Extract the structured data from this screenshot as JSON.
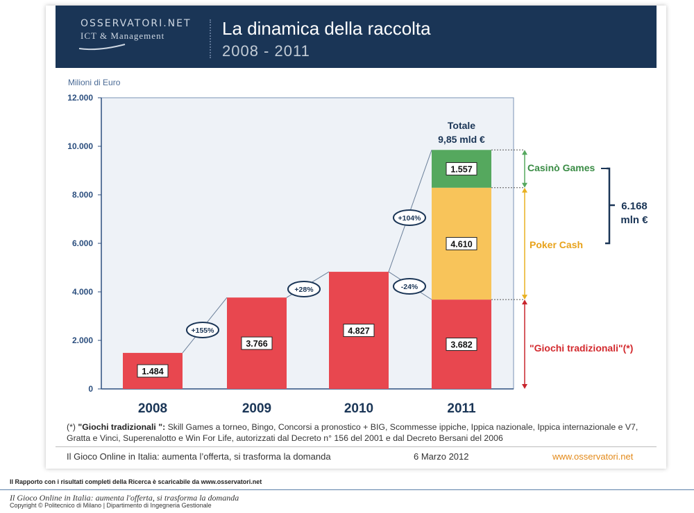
{
  "header": {
    "logo_name": "OSSERVATORI.NET",
    "logo_sub": "ICT & Management",
    "title": "La dinamica della raccolta",
    "subtitle": "2008 - 2011"
  },
  "chart_data": {
    "type": "bar",
    "ylabel": "Milioni di Euro",
    "ylim": [
      0,
      12000
    ],
    "yticks": [
      "0",
      "2.000",
      "4.000",
      "6.000",
      "8.000",
      "10.000",
      "12.000"
    ],
    "categories": [
      "2008",
      "2009",
      "2010",
      "2011"
    ],
    "series": [
      {
        "name": "\"Giochi tradizionali\"(*)",
        "color": "#e8474f",
        "values": [
          1484,
          3766,
          4827,
          3682
        ],
        "labels": [
          "1.484",
          "3.766",
          "4.827",
          "3.682"
        ]
      },
      {
        "name": "Poker Cash",
        "color": "#f8c45a",
        "values": [
          0,
          0,
          0,
          4610
        ],
        "labels": [
          "",
          "",
          "",
          "4.610"
        ]
      },
      {
        "name": "Casinò Games",
        "color": "#55a85e",
        "values": [
          0,
          0,
          0,
          1557
        ],
        "labels": [
          "",
          "",
          "",
          "1.557"
        ]
      }
    ],
    "growth": [
      "+155%",
      "+28%",
      "+104%",
      "-24%"
    ],
    "total_label": "Totale",
    "total_value": "9,85 mld €",
    "bracket_value": "6.168",
    "bracket_unit": "mln €"
  },
  "footnote": {
    "prefix": "(*) ",
    "term": "\"Giochi tradizionali \":",
    "text": " Skill Games a torneo, Bingo, Concorsi a pronostico + BIG, Scommesse ippiche,  Ippica nazionale, Ippica internazionale  e V7, Gratta e Vinci, Superenalotto e Win For Life, autorizzati dal Decreto n° 156 del 2001 e dal Decreto Bersani del 2006"
  },
  "footer": {
    "left": "Il Gioco Online in Italia: aumenta l’offerta, si trasforma la domanda",
    "date": "6 Marzo 2012",
    "url": "www.osservatori.net"
  },
  "page": {
    "line1": "Il Rapporto con i risultati completi della Ricerca è scaricabile da www.osservatori.net",
    "line2": "Il Gioco Online in Italia: aumenta l'offerta, si trasforma la domanda",
    "line3": "Copyright © Politecnico di Milano | Dipartimento di Ingegneria Gestionale"
  }
}
